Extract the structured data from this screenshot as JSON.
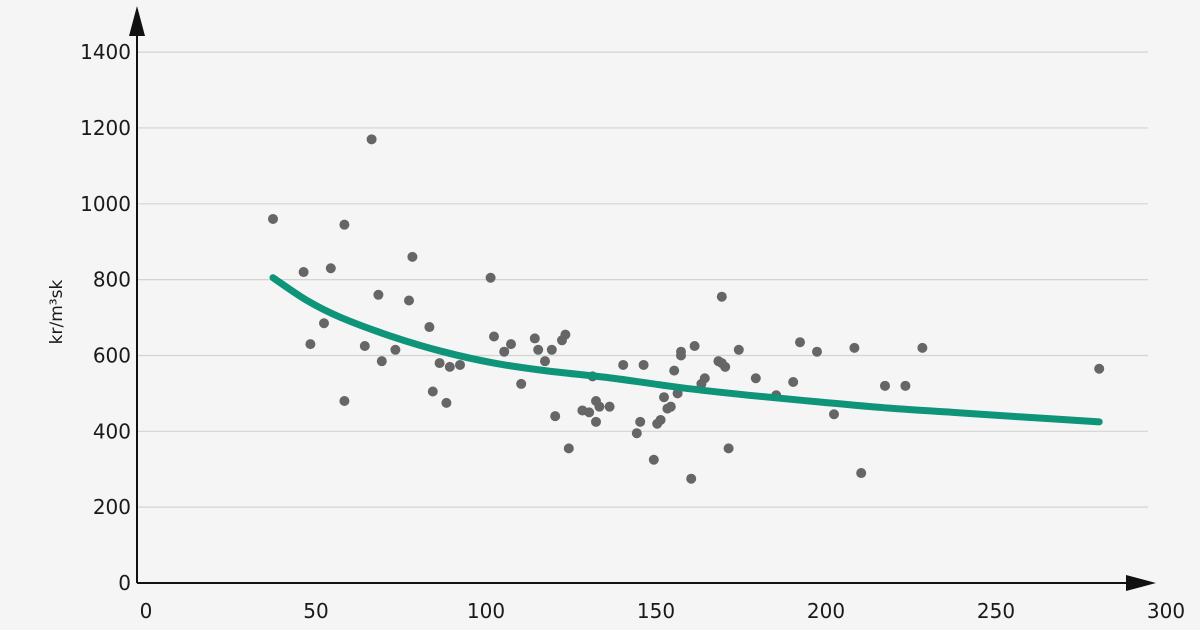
{
  "chart_data": {
    "type": "scatter",
    "title": "",
    "xlabel": "",
    "ylabel": "kr/m³sk",
    "xlim": [
      0,
      350
    ],
    "ylim": [
      0,
      1400
    ],
    "xticks": [
      0,
      50,
      100,
      150,
      200,
      250,
      300
    ],
    "yticks": [
      0,
      200,
      400,
      600,
      800,
      1000,
      1200,
      1400
    ],
    "grid": "horizontal",
    "legend": "none",
    "colors": {
      "points": "#666666",
      "trend": "#0e9478",
      "axis": "#111111",
      "grid": "#d4d4d4",
      "background": "#f5f5f5"
    },
    "series": [
      {
        "type": "scatter",
        "points": [
          [
            40,
            960
          ],
          [
            49,
            820
          ],
          [
            51,
            630
          ],
          [
            55,
            685
          ],
          [
            57,
            830
          ],
          [
            61,
            945
          ],
          [
            61,
            480
          ],
          [
            67,
            625
          ],
          [
            69,
            1170
          ],
          [
            71,
            760
          ],
          [
            72,
            585
          ],
          [
            76,
            615
          ],
          [
            80,
            745
          ],
          [
            81,
            860
          ],
          [
            86,
            675
          ],
          [
            87,
            505
          ],
          [
            89,
            580
          ],
          [
            91,
            475
          ],
          [
            92,
            570
          ],
          [
            95,
            575
          ],
          [
            104,
            805
          ],
          [
            105,
            650
          ],
          [
            108,
            610
          ],
          [
            110,
            630
          ],
          [
            113,
            525
          ],
          [
            117,
            645
          ],
          [
            118,
            615
          ],
          [
            120,
            585
          ],
          [
            122,
            615
          ],
          [
            123,
            440
          ],
          [
            125,
            640
          ],
          [
            126,
            655
          ],
          [
            127,
            355
          ],
          [
            131,
            455
          ],
          [
            133,
            450
          ],
          [
            134,
            545
          ],
          [
            135,
            480
          ],
          [
            135,
            425
          ],
          [
            136,
            465
          ],
          [
            139,
            465
          ],
          [
            143,
            575
          ],
          [
            147,
            395
          ],
          [
            148,
            425
          ],
          [
            149,
            575
          ],
          [
            152,
            325
          ],
          [
            153,
            420
          ],
          [
            154,
            430
          ],
          [
            155,
            490
          ],
          [
            156,
            460
          ],
          [
            157,
            465
          ],
          [
            158,
            560
          ],
          [
            159,
            500
          ],
          [
            160,
            610
          ],
          [
            160,
            600
          ],
          [
            163,
            275
          ],
          [
            164,
            625
          ],
          [
            166,
            525
          ],
          [
            167,
            540
          ],
          [
            171,
            585
          ],
          [
            172,
            580
          ],
          [
            173,
            570
          ],
          [
            172,
            755
          ],
          [
            174,
            355
          ],
          [
            177,
            615
          ],
          [
            182,
            540
          ],
          [
            188,
            495
          ],
          [
            193,
            530
          ],
          [
            195,
            635
          ],
          [
            200,
            610
          ],
          [
            205,
            445
          ],
          [
            211,
            620
          ],
          [
            213,
            290
          ],
          [
            220,
            520
          ],
          [
            226,
            520
          ],
          [
            231,
            620
          ],
          [
            283,
            565
          ]
        ]
      },
      {
        "type": "line",
        "points": [
          [
            40,
            805
          ],
          [
            50,
            745
          ],
          [
            60,
            700
          ],
          [
            75,
            650
          ],
          [
            90,
            610
          ],
          [
            105,
            580
          ],
          [
            120,
            560
          ],
          [
            140,
            540
          ],
          [
            160,
            515
          ],
          [
            180,
            495
          ],
          [
            200,
            478
          ],
          [
            220,
            462
          ],
          [
            240,
            450
          ],
          [
            260,
            438
          ],
          [
            283,
            425
          ]
        ]
      }
    ]
  }
}
